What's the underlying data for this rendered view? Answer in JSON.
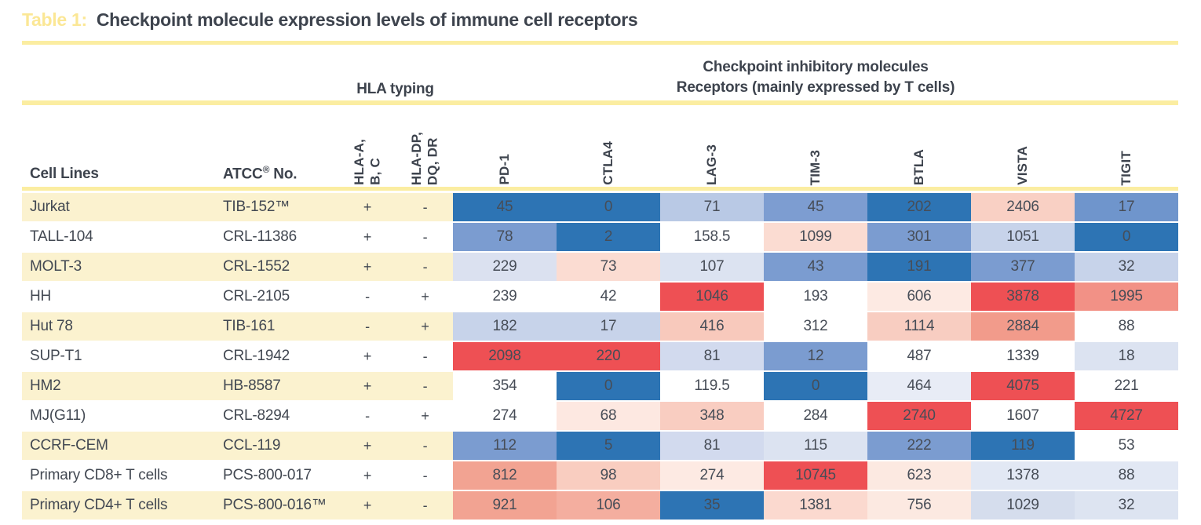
{
  "title": {
    "prefix": "Table 1:",
    "text": "Checkpoint molecule expression levels of immune cell receptors"
  },
  "group_headers": {
    "hla": "HLA typing",
    "checkpoint_line1": "Checkpoint inhibitory molecules",
    "checkpoint_line2": "Receptors (mainly expressed by T cells)"
  },
  "columns": {
    "cell_lines_label": "Cell Lines",
    "atcc_name": "ATCC",
    "atcc_reg": "®",
    "atcc_rest": " No.",
    "hla_col1_lines": [
      "HLA-A,",
      "B, C"
    ],
    "hla_col2_lines": [
      "HLA-DP,",
      "DQ, DR"
    ],
    "molecules": [
      "PD-1",
      "CTLA4",
      "LAG-3",
      "TIM-3",
      "BTLA",
      "VISTA",
      "TIGIT"
    ]
  },
  "palette": {
    "accent_yellow_line": "#fbeda1",
    "title_prefix_yellow": "#fbe795",
    "row_stripe_cream": "#fbf2cf",
    "heat_low_blue": "#2d74b4",
    "heat_mid_white": "#ffffff",
    "heat_high_red": "#ee5054",
    "text_dark": "#3d434d"
  },
  "rows": [
    {
      "cell_line": "Jurkat",
      "atcc": "TIB-152™",
      "hla_abc": "+",
      "hla_dpdqdr": "-",
      "striped": true,
      "values": [
        "45",
        "0",
        "71",
        "45",
        "202",
        "2406",
        "17"
      ],
      "colors": [
        "#2d74b4",
        "#2d74b4",
        "#b9c9e5",
        "#7d9dd1",
        "#2d74b4",
        "#f9d0c4",
        "#6f95cc"
      ]
    },
    {
      "cell_line": "TALL-104",
      "atcc": "CRL-11386",
      "hla_abc": "+",
      "hla_dpdqdr": "-",
      "striped": false,
      "values": [
        "78",
        "2",
        "158.5",
        "1099",
        "301",
        "1051",
        "0"
      ],
      "colors": [
        "#7b9cd0",
        "#2d74b4",
        "#ffffff",
        "#fbdcd2",
        "#7b9cd0",
        "#c7d3ea",
        "#2d74b4"
      ]
    },
    {
      "cell_line": "MOLT-3",
      "atcc": "CRL-1552",
      "hla_abc": "+",
      "hla_dpdqdr": "-",
      "striped": true,
      "values": [
        "229",
        "73",
        "107",
        "43",
        "191",
        "377",
        "32"
      ],
      "colors": [
        "#dbe1f0",
        "#fbdcd2",
        "#dce3f1",
        "#7b9cd0",
        "#2d74b4",
        "#7b9cd0",
        "#c7d3ea"
      ]
    },
    {
      "cell_line": "HH",
      "atcc": "CRL-2105",
      "hla_abc": "-",
      "hla_dpdqdr": "+",
      "striped": false,
      "values": [
        "239",
        "42",
        "1046",
        "193",
        "606",
        "3878",
        "1995"
      ],
      "colors": [
        "#ffffff",
        "#ffffff",
        "#ee5054",
        "#ffffff",
        "#fdeae3",
        "#ee5054",
        "#f29186"
      ]
    },
    {
      "cell_line": "Hut 78",
      "atcc": "TIB-161",
      "hla_abc": "-",
      "hla_dpdqdr": "+",
      "striped": true,
      "values": [
        "182",
        "17",
        "416",
        "312",
        "1114",
        "2884",
        "88"
      ],
      "colors": [
        "#c7d3ea",
        "#c7d3ea",
        "#f8c9bc",
        "#ffffff",
        "#f8cdc1",
        "#f29b8b",
        "#ffffff"
      ]
    },
    {
      "cell_line": "SUP-T1",
      "atcc": "CRL-1942",
      "hla_abc": "+",
      "hla_dpdqdr": "-",
      "striped": false,
      "values": [
        "2098",
        "220",
        "81",
        "12",
        "487",
        "1339",
        "18"
      ],
      "colors": [
        "#ee5054",
        "#ee5054",
        "#d2daee",
        "#7b9cd0",
        "#ffffff",
        "#ffffff",
        "#dce3f1"
      ]
    },
    {
      "cell_line": "HM2",
      "atcc": "HB-8587",
      "hla_abc": "+",
      "hla_dpdqdr": "-",
      "striped": true,
      "values": [
        "354",
        "0",
        "119.5",
        "0",
        "464",
        "4075",
        "221"
      ],
      "colors": [
        "#ffffff",
        "#2d74b4",
        "#ffffff",
        "#2d74b4",
        "#e8ecf6",
        "#ee5054",
        "#ffffff"
      ]
    },
    {
      "cell_line": "MJ(G11)",
      "atcc": "CRL-8294",
      "hla_abc": "-",
      "hla_dpdqdr": "+",
      "striped": false,
      "values": [
        "274",
        "68",
        "348",
        "284",
        "2740",
        "1607",
        "4727"
      ],
      "colors": [
        "#ffffff",
        "#fde8e1",
        "#f9cdc1",
        "#ffffff",
        "#ee5054",
        "#ffffff",
        "#ee5054"
      ]
    },
    {
      "cell_line": "CCRF-CEM",
      "atcc": "CCL-119",
      "hla_abc": "+",
      "hla_dpdqdr": "-",
      "striped": true,
      "values": [
        "112",
        "5",
        "81",
        "115",
        "222",
        "119",
        "53"
      ],
      "colors": [
        "#7b9cd0",
        "#2d74b4",
        "#d2daee",
        "#dce3f1",
        "#7b9cd0",
        "#2d74b4",
        "#ffffff"
      ]
    },
    {
      "cell_line": "Primary CD8+ T cells",
      "atcc": "PCS-800-017",
      "hla_abc": "+",
      "hla_dpdqdr": "-",
      "striped": false,
      "values": [
        "812",
        "98",
        "274",
        "10745",
        "623",
        "1378",
        "88"
      ],
      "colors": [
        "#f2a392",
        "#f9cdc0",
        "#fdeae3",
        "#ee5054",
        "#fce9e1",
        "#e2e8f4",
        "#e2e8f4"
      ]
    },
    {
      "cell_line": "Primary CD4+ T cells",
      "atcc": "PCS-800-016™",
      "hla_abc": "+",
      "hla_dpdqdr": "-",
      "striped": true,
      "values": [
        "921",
        "106",
        "35",
        "1381",
        "756",
        "1029",
        "32"
      ],
      "colors": [
        "#f2a392",
        "#f4ae9f",
        "#2d74b4",
        "#fbd9cf",
        "#fce9e1",
        "#d5dded",
        "#dde4f1"
      ]
    }
  ],
  "chart_data": {
    "type": "heatmap",
    "title": "Table 1: Checkpoint molecule expression levels of immune cell receptors",
    "group_header": "Checkpoint inhibitory molecules — Receptors (mainly expressed by T cells)",
    "row_labels": [
      "Jurkat",
      "TALL-104",
      "MOLT-3",
      "HH",
      "Hut 78",
      "SUP-T1",
      "HM2",
      "MJ(G11)",
      "CCRF-CEM",
      "Primary CD8+ T cells",
      "Primary CD4+ T cells"
    ],
    "atcc_numbers": [
      "TIB-152™",
      "CRL-11386",
      "CRL-1552",
      "CRL-2105",
      "TIB-161",
      "CRL-1942",
      "HB-8587",
      "CRL-8294",
      "CCL-119",
      "PCS-800-017",
      "PCS-800-016™"
    ],
    "hla_a_b_c": [
      "+",
      "+",
      "+",
      "-",
      "-",
      "+",
      "+",
      "-",
      "+",
      "+",
      "+"
    ],
    "hla_dp_dq_dr": [
      "-",
      "-",
      "-",
      "+",
      "+",
      "-",
      "-",
      "+",
      "-",
      "-",
      "-"
    ],
    "col_labels": [
      "PD-1",
      "CTLA4",
      "LAG-3",
      "TIM-3",
      "BTLA",
      "VISTA",
      "TIGIT"
    ],
    "values": [
      [
        45,
        0,
        71,
        45,
        202,
        2406,
        17
      ],
      [
        78,
        2,
        158.5,
        1099,
        301,
        1051,
        0
      ],
      [
        229,
        73,
        107,
        43,
        191,
        377,
        32
      ],
      [
        239,
        42,
        1046,
        193,
        606,
        3878,
        1995
      ],
      [
        182,
        17,
        416,
        312,
        1114,
        2884,
        88
      ],
      [
        2098,
        220,
        81,
        12,
        487,
        1339,
        18
      ],
      [
        354,
        0,
        119.5,
        0,
        464,
        4075,
        221
      ],
      [
        274,
        68,
        348,
        284,
        2740,
        1607,
        4727
      ],
      [
        112,
        5,
        81,
        115,
        222,
        119,
        53
      ],
      [
        812,
        98,
        274,
        10745,
        623,
        1378,
        88
      ],
      [
        921,
        106,
        35,
        1381,
        756,
        1029,
        32
      ]
    ],
    "colormap": "diverging blue(low)-white-red(high), scaled per column"
  }
}
